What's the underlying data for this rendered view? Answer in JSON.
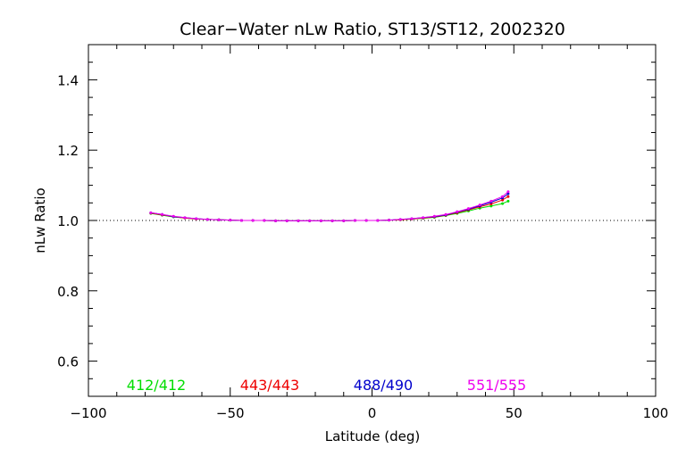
{
  "chart_data": {
    "type": "line",
    "title": "Clear−Water nLw Ratio, ST13/ST12, 2002320",
    "xlabel": "Latitude (deg)",
    "ylabel": "nLw Ratio",
    "xlim": [
      -100,
      100
    ],
    "ylim": [
      0.5,
      1.5
    ],
    "xticks": [
      -100,
      -50,
      0,
      50,
      100
    ],
    "xtick_labels": [
      "−100",
      "−50",
      "0",
      "50",
      "100"
    ],
    "yticks": [
      0.6,
      0.8,
      1.0,
      1.2,
      1.4
    ],
    "ytick_labels": [
      "0.6",
      "0.8",
      "1.0",
      "1.2",
      "1.4"
    ],
    "reference_line": 1.0,
    "legend_placement": "bottom, inside plot",
    "x": [
      -78,
      -74,
      -70,
      -66,
      -62,
      -58,
      -54,
      -50,
      -46,
      -42,
      -38,
      -34,
      -30,
      -26,
      -22,
      -18,
      -14,
      -10,
      -6,
      -2,
      2,
      6,
      10,
      14,
      18,
      22,
      26,
      30,
      34,
      38,
      42,
      46,
      48
    ],
    "series": [
      {
        "name": "412/412",
        "color": "#00dd00",
        "values": [
          1.02,
          1.015,
          1.01,
          1.007,
          1.004,
          1.003,
          1.002,
          1.001,
          1.0,
          1.0,
          1.0,
          0.999,
          0.999,
          0.999,
          0.999,
          0.999,
          0.999,
          0.999,
          1.0,
          1.0,
          1.0,
          1.001,
          1.002,
          1.004,
          1.006,
          1.009,
          1.014,
          1.02,
          1.027,
          1.035,
          1.041,
          1.048,
          1.055
        ]
      },
      {
        "name": "443/443",
        "color": "#ee0000",
        "values": [
          1.021,
          1.016,
          1.011,
          1.007,
          1.004,
          1.003,
          1.002,
          1.001,
          1.0,
          1.0,
          1.0,
          0.999,
          0.999,
          0.999,
          0.999,
          0.999,
          0.999,
          0.999,
          1.0,
          1.0,
          1.0,
          1.001,
          1.002,
          1.004,
          1.007,
          1.01,
          1.015,
          1.022,
          1.03,
          1.039,
          1.047,
          1.058,
          1.068
        ]
      },
      {
        "name": "488/490",
        "color": "#0000cc",
        "values": [
          1.022,
          1.017,
          1.011,
          1.008,
          1.005,
          1.003,
          1.002,
          1.001,
          1.0,
          1.0,
          1.0,
          0.999,
          0.999,
          0.999,
          0.999,
          0.999,
          0.999,
          0.999,
          1.0,
          1.0,
          1.0,
          1.001,
          1.003,
          1.005,
          1.008,
          1.011,
          1.016,
          1.024,
          1.032,
          1.042,
          1.052,
          1.064,
          1.076
        ]
      },
      {
        "name": "551/555",
        "color": "#ee00ee",
        "values": [
          1.022,
          1.017,
          1.012,
          1.008,
          1.005,
          1.003,
          1.002,
          1.001,
          1.0,
          1.0,
          1.0,
          0.999,
          0.999,
          0.999,
          0.999,
          0.999,
          0.999,
          0.999,
          1.0,
          1.0,
          1.0,
          1.001,
          1.003,
          1.005,
          1.008,
          1.012,
          1.017,
          1.025,
          1.034,
          1.044,
          1.055,
          1.068,
          1.082
        ]
      }
    ]
  }
}
